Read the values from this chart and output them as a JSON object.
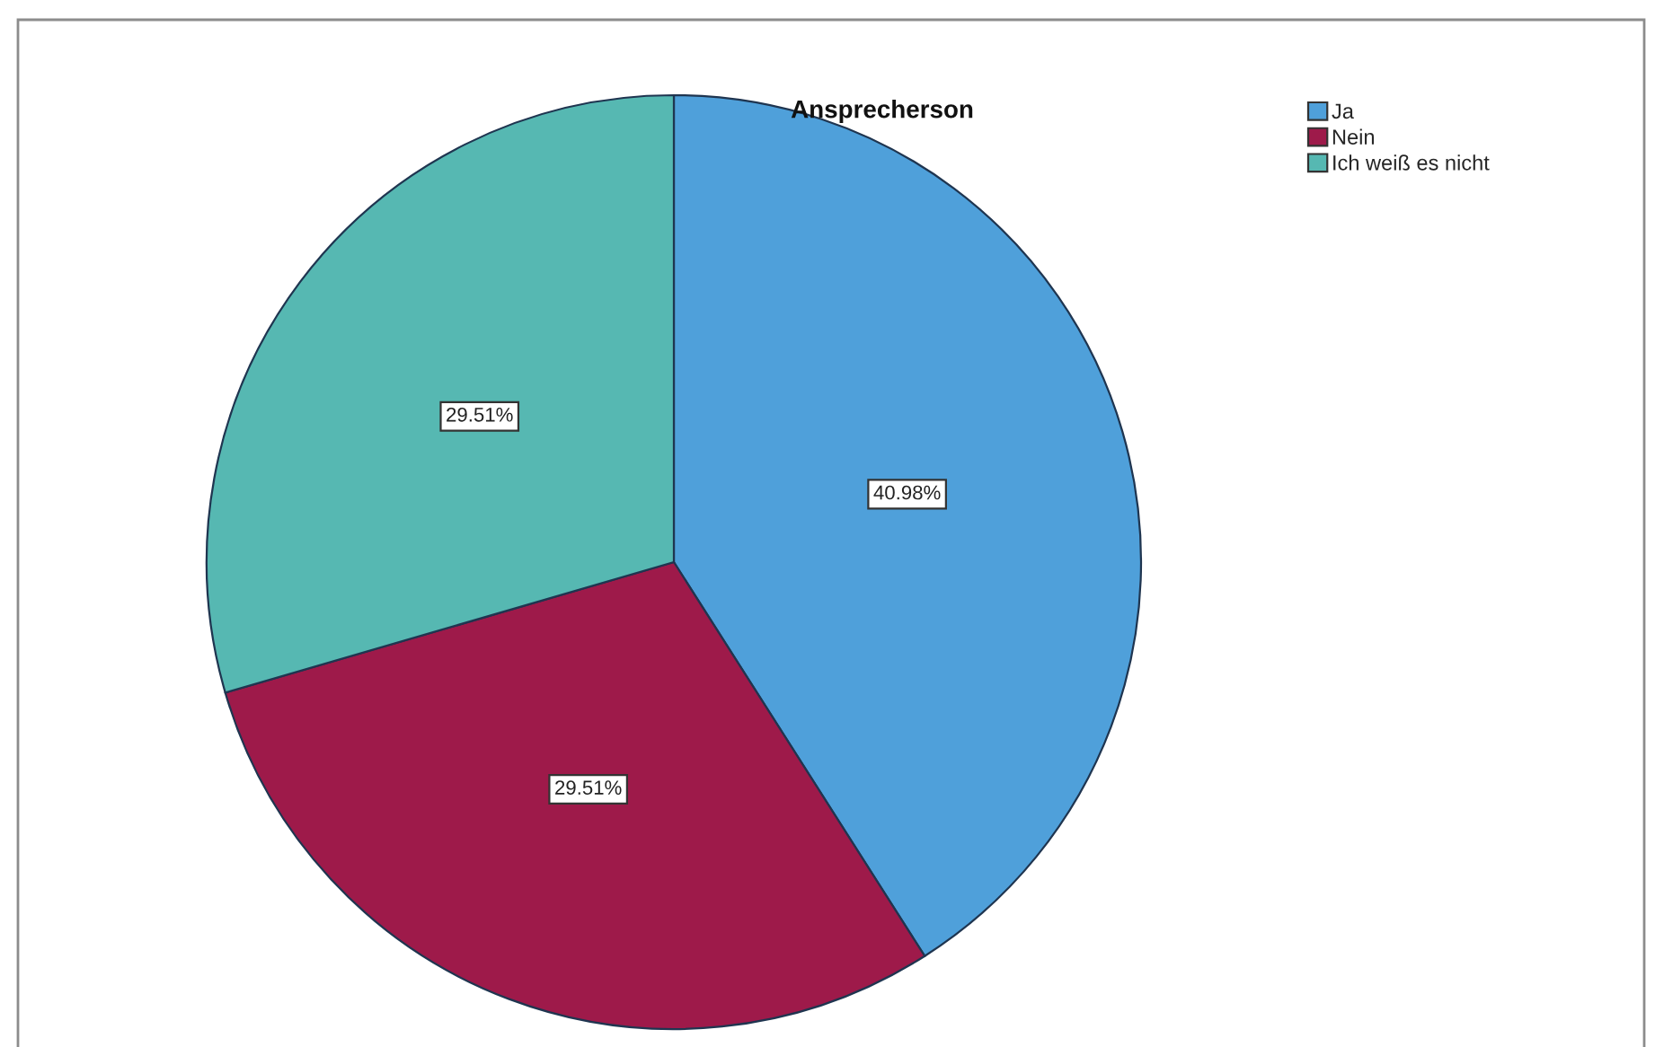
{
  "chart_data": {
    "type": "pie",
    "title": "Ansprecherson",
    "categories": [
      "Ja",
      "Nein",
      "Ich weiß es nicht"
    ],
    "values": [
      40.98,
      29.51,
      29.51
    ],
    "colors": [
      "#4fa0da",
      "#9e1a4a",
      "#56b8b2"
    ],
    "value_labels": [
      "40.98%",
      "29.51%",
      "29.51%"
    ],
    "legend": "top right"
  }
}
